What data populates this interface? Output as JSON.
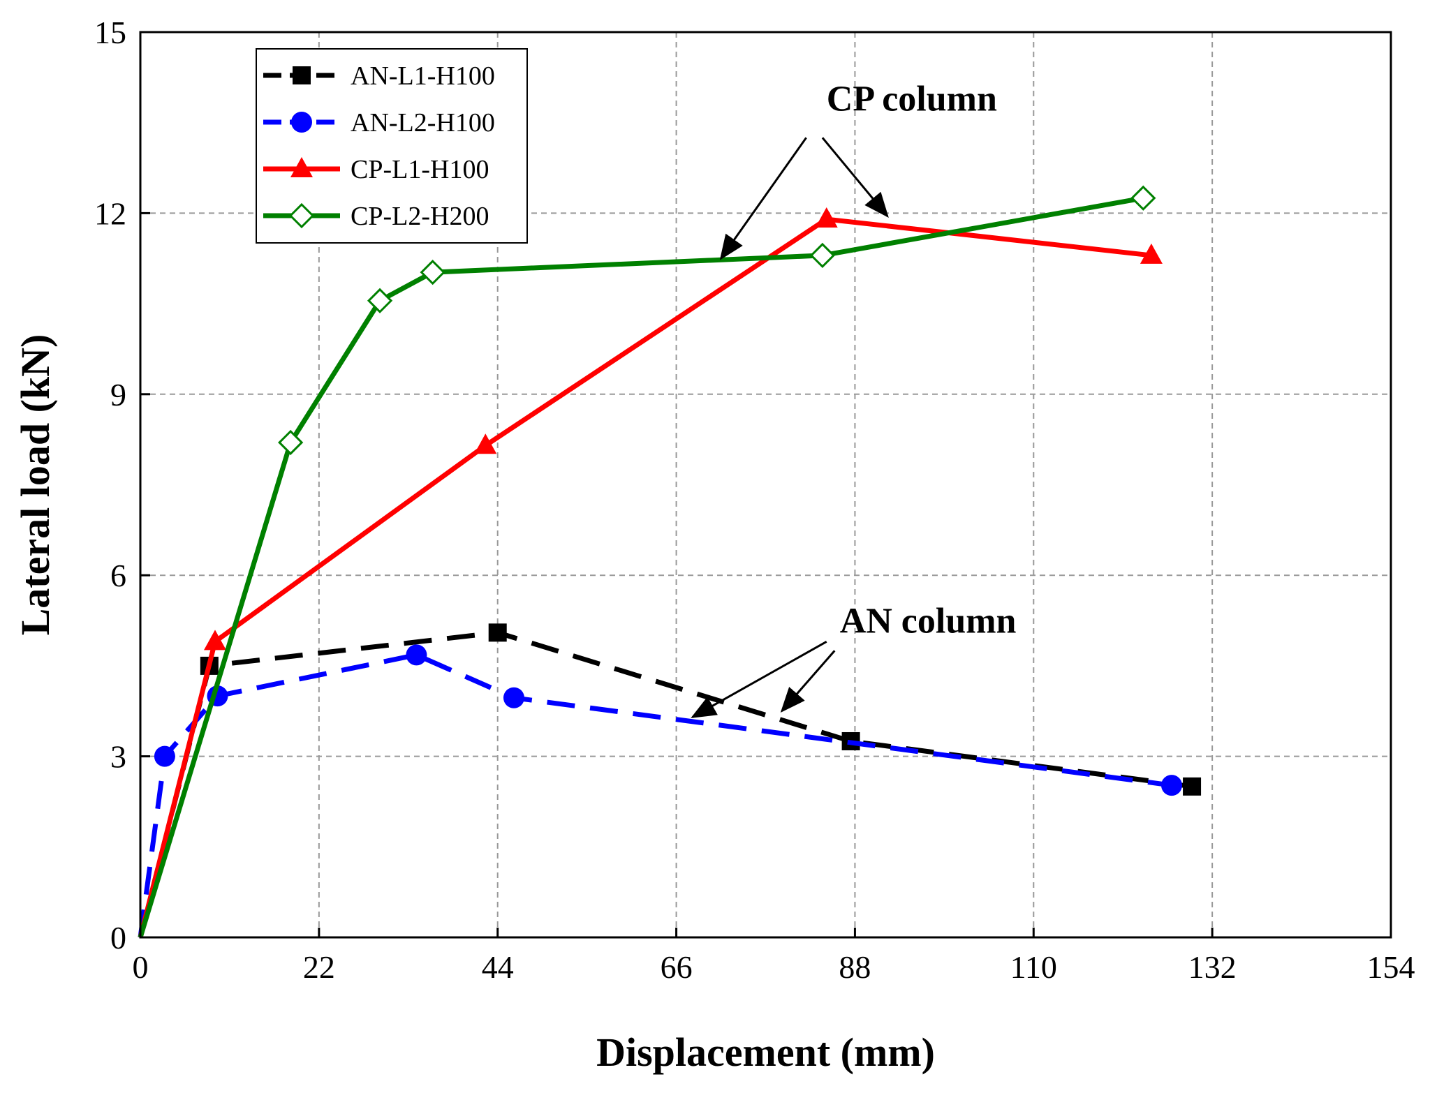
{
  "chart_data": {
    "type": "line",
    "title": "",
    "xlabel": "Displacement (mm)",
    "ylabel": "Lateral load (kN)",
    "xlim": [
      0,
      154
    ],
    "ylim": [
      0,
      15
    ],
    "xticks": [
      0,
      22,
      44,
      66,
      88,
      110,
      132,
      154
    ],
    "yticks": [
      0,
      3,
      6,
      9,
      12,
      15
    ],
    "grid": true,
    "legend_position": "top-left",
    "series": [
      {
        "name": "AN-L1-H100",
        "color": "#000000",
        "line_style": "dashed",
        "marker": "filled-square",
        "points": [
          [
            0,
            0
          ],
          [
            8.5,
            4.5
          ],
          [
            44,
            5.05
          ],
          [
            87.5,
            3.25
          ],
          [
            129.5,
            2.5
          ]
        ]
      },
      {
        "name": "AN-L2-H100",
        "color": "#0000ff",
        "line_style": "dashed",
        "marker": "filled-circle",
        "points": [
          [
            0,
            0
          ],
          [
            3,
            3.0
          ],
          [
            9.5,
            4.0
          ],
          [
            34,
            4.68
          ],
          [
            46,
            3.97
          ],
          [
            127,
            2.52
          ]
        ]
      },
      {
        "name": "CP-L1-H100",
        "color": "#ff0000",
        "line_style": "solid",
        "marker": "filled-triangle",
        "points": [
          [
            0,
            0
          ],
          [
            9.2,
            4.9
          ],
          [
            42.5,
            8.15
          ],
          [
            84.5,
            11.9
          ],
          [
            124.5,
            11.3
          ]
        ]
      },
      {
        "name": "CP-L2-H200",
        "color": "#008000",
        "line_style": "solid",
        "marker": "hollow-diamond",
        "points": [
          [
            0,
            0
          ],
          [
            18.5,
            8.2
          ],
          [
            29.5,
            10.55
          ],
          [
            36,
            11.02
          ],
          [
            84,
            11.3
          ],
          [
            123.5,
            12.25
          ]
        ]
      }
    ],
    "annotations": [
      {
        "text": "CP column",
        "text_anchor": [
          95,
          13.7
        ],
        "arrows": [
          {
            "from": [
              82,
              13.25
            ],
            "to": [
              71.5,
              11.25
            ]
          },
          {
            "from": [
              84,
              13.25
            ],
            "to": [
              92,
              11.95
            ]
          }
        ]
      },
      {
        "text": "AN column",
        "text_anchor": [
          97,
          5.05
        ],
        "arrows": [
          {
            "from": [
              84.5,
              4.9
            ],
            "to": [
              68,
              3.65
            ]
          },
          {
            "from": [
              85.5,
              4.75
            ],
            "to": [
              79,
              3.75
            ]
          }
        ]
      }
    ]
  }
}
